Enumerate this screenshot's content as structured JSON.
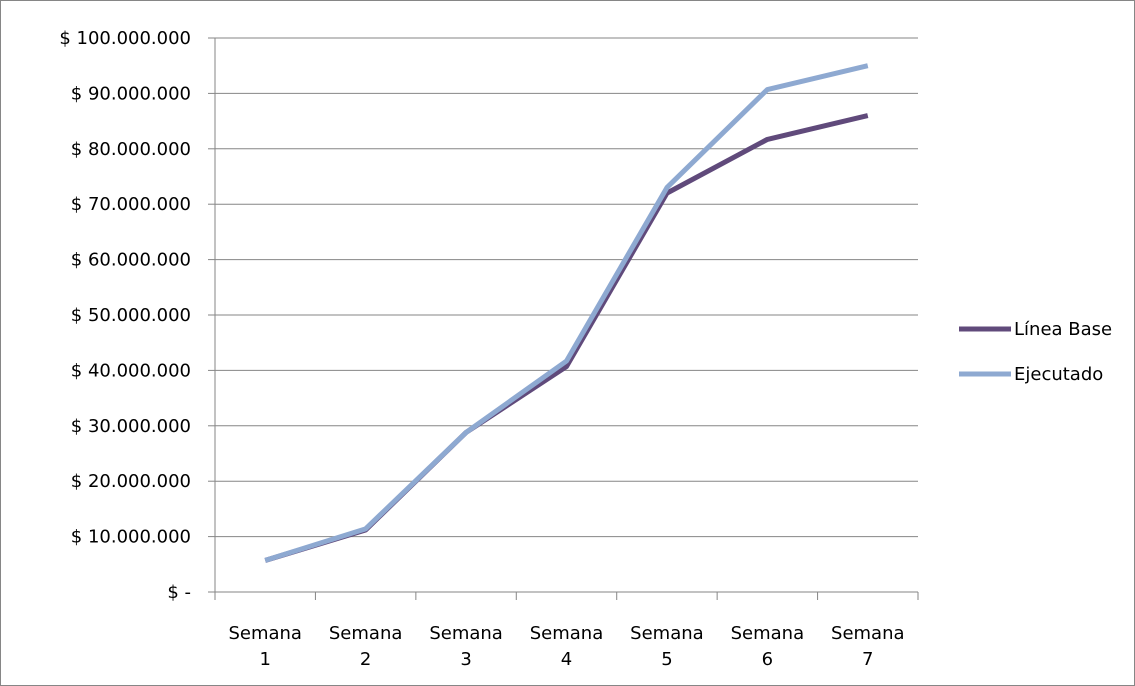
{
  "chart_data": {
    "type": "line",
    "categories": [
      [
        "Semana",
        "1"
      ],
      [
        "Semana",
        "2"
      ],
      [
        "Semana",
        "3"
      ],
      [
        "Semana",
        "4"
      ],
      [
        "Semana",
        "5"
      ],
      [
        "Semana",
        "6"
      ],
      [
        "Semana",
        "7"
      ]
    ],
    "y_tick_labels": [
      "$ -",
      "$ 10.000.000",
      "$ 20.000.000",
      "$ 30.000.000",
      "$ 40.000.000",
      "$ 50.000.000",
      "$ 60.000.000",
      "$ 70.000.000",
      "$ 80.000.000",
      "$ 90.000.000",
      "$ 100.000.000"
    ],
    "ylim": [
      0,
      100000000
    ],
    "y_step": 10000000,
    "grid": true,
    "legend_position": "right",
    "series": [
      {
        "name": "Línea Base",
        "color": "#604A7B",
        "values": [
          5700000,
          11200000,
          28800000,
          40700000,
          72000000,
          81700000,
          86000000
        ]
      },
      {
        "name": "Ejecutado",
        "color": "#8EA9D1",
        "values": [
          5700000,
          11400000,
          28800000,
          41700000,
          73000000,
          90700000,
          95000000
        ]
      }
    ]
  }
}
